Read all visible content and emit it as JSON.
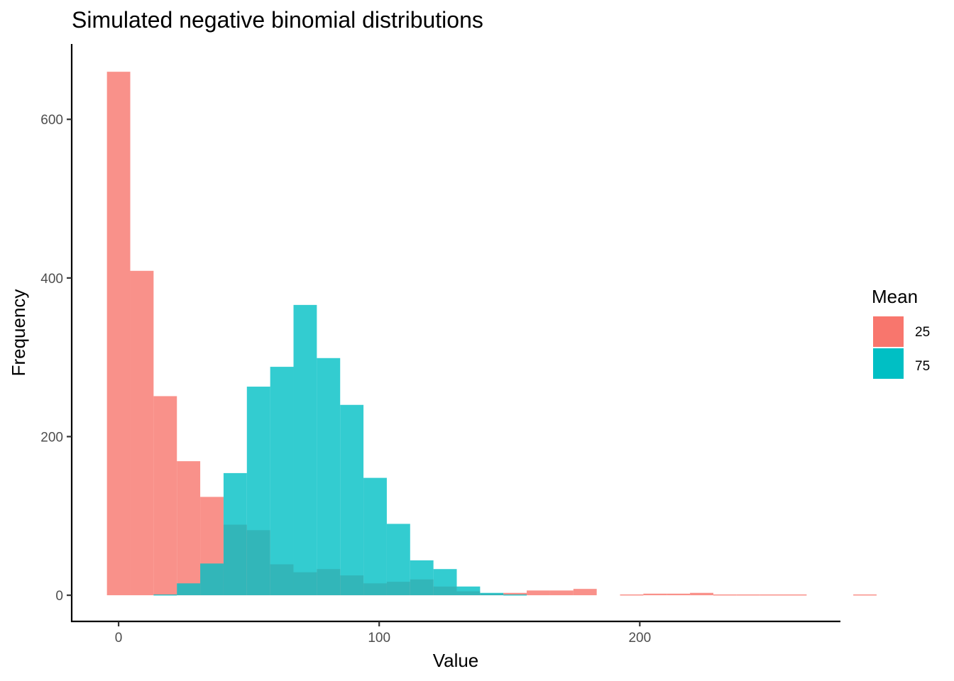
{
  "chart_data": {
    "type": "histogram",
    "title": "Simulated negative binomial distributions",
    "xlabel": "Value",
    "ylabel": "Frequency",
    "xlim": [
      -18,
      277
    ],
    "ylim": [
      -33,
      695
    ],
    "x_ticks": [
      0,
      100,
      200
    ],
    "y_ticks": [
      0,
      200,
      400,
      600
    ],
    "grid": false,
    "legend": {
      "title": "Mean",
      "position": "right"
    },
    "bin_width": 8.95,
    "bin_start": -4.475,
    "bar_opacity": 0.8,
    "series": [
      {
        "name": "25",
        "color": "#F8766D",
        "counts": [
          660,
          409,
          251,
          169,
          124,
          89,
          82,
          39,
          29,
          33,
          25,
          15,
          17,
          20,
          11,
          5,
          2,
          3,
          6,
          6,
          8,
          0,
          1,
          2,
          2,
          3,
          1,
          1,
          1,
          1,
          0,
          0,
          1
        ]
      },
      {
        "name": "75",
        "color": "#00BFC4",
        "counts": [
          0,
          0,
          1,
          15,
          40,
          154,
          263,
          288,
          366,
          299,
          240,
          148,
          90,
          44,
          33,
          11,
          3,
          1,
          0,
          0,
          0,
          0,
          0,
          0,
          0,
          0,
          0,
          0,
          0,
          0,
          0,
          0,
          0
        ]
      }
    ]
  }
}
